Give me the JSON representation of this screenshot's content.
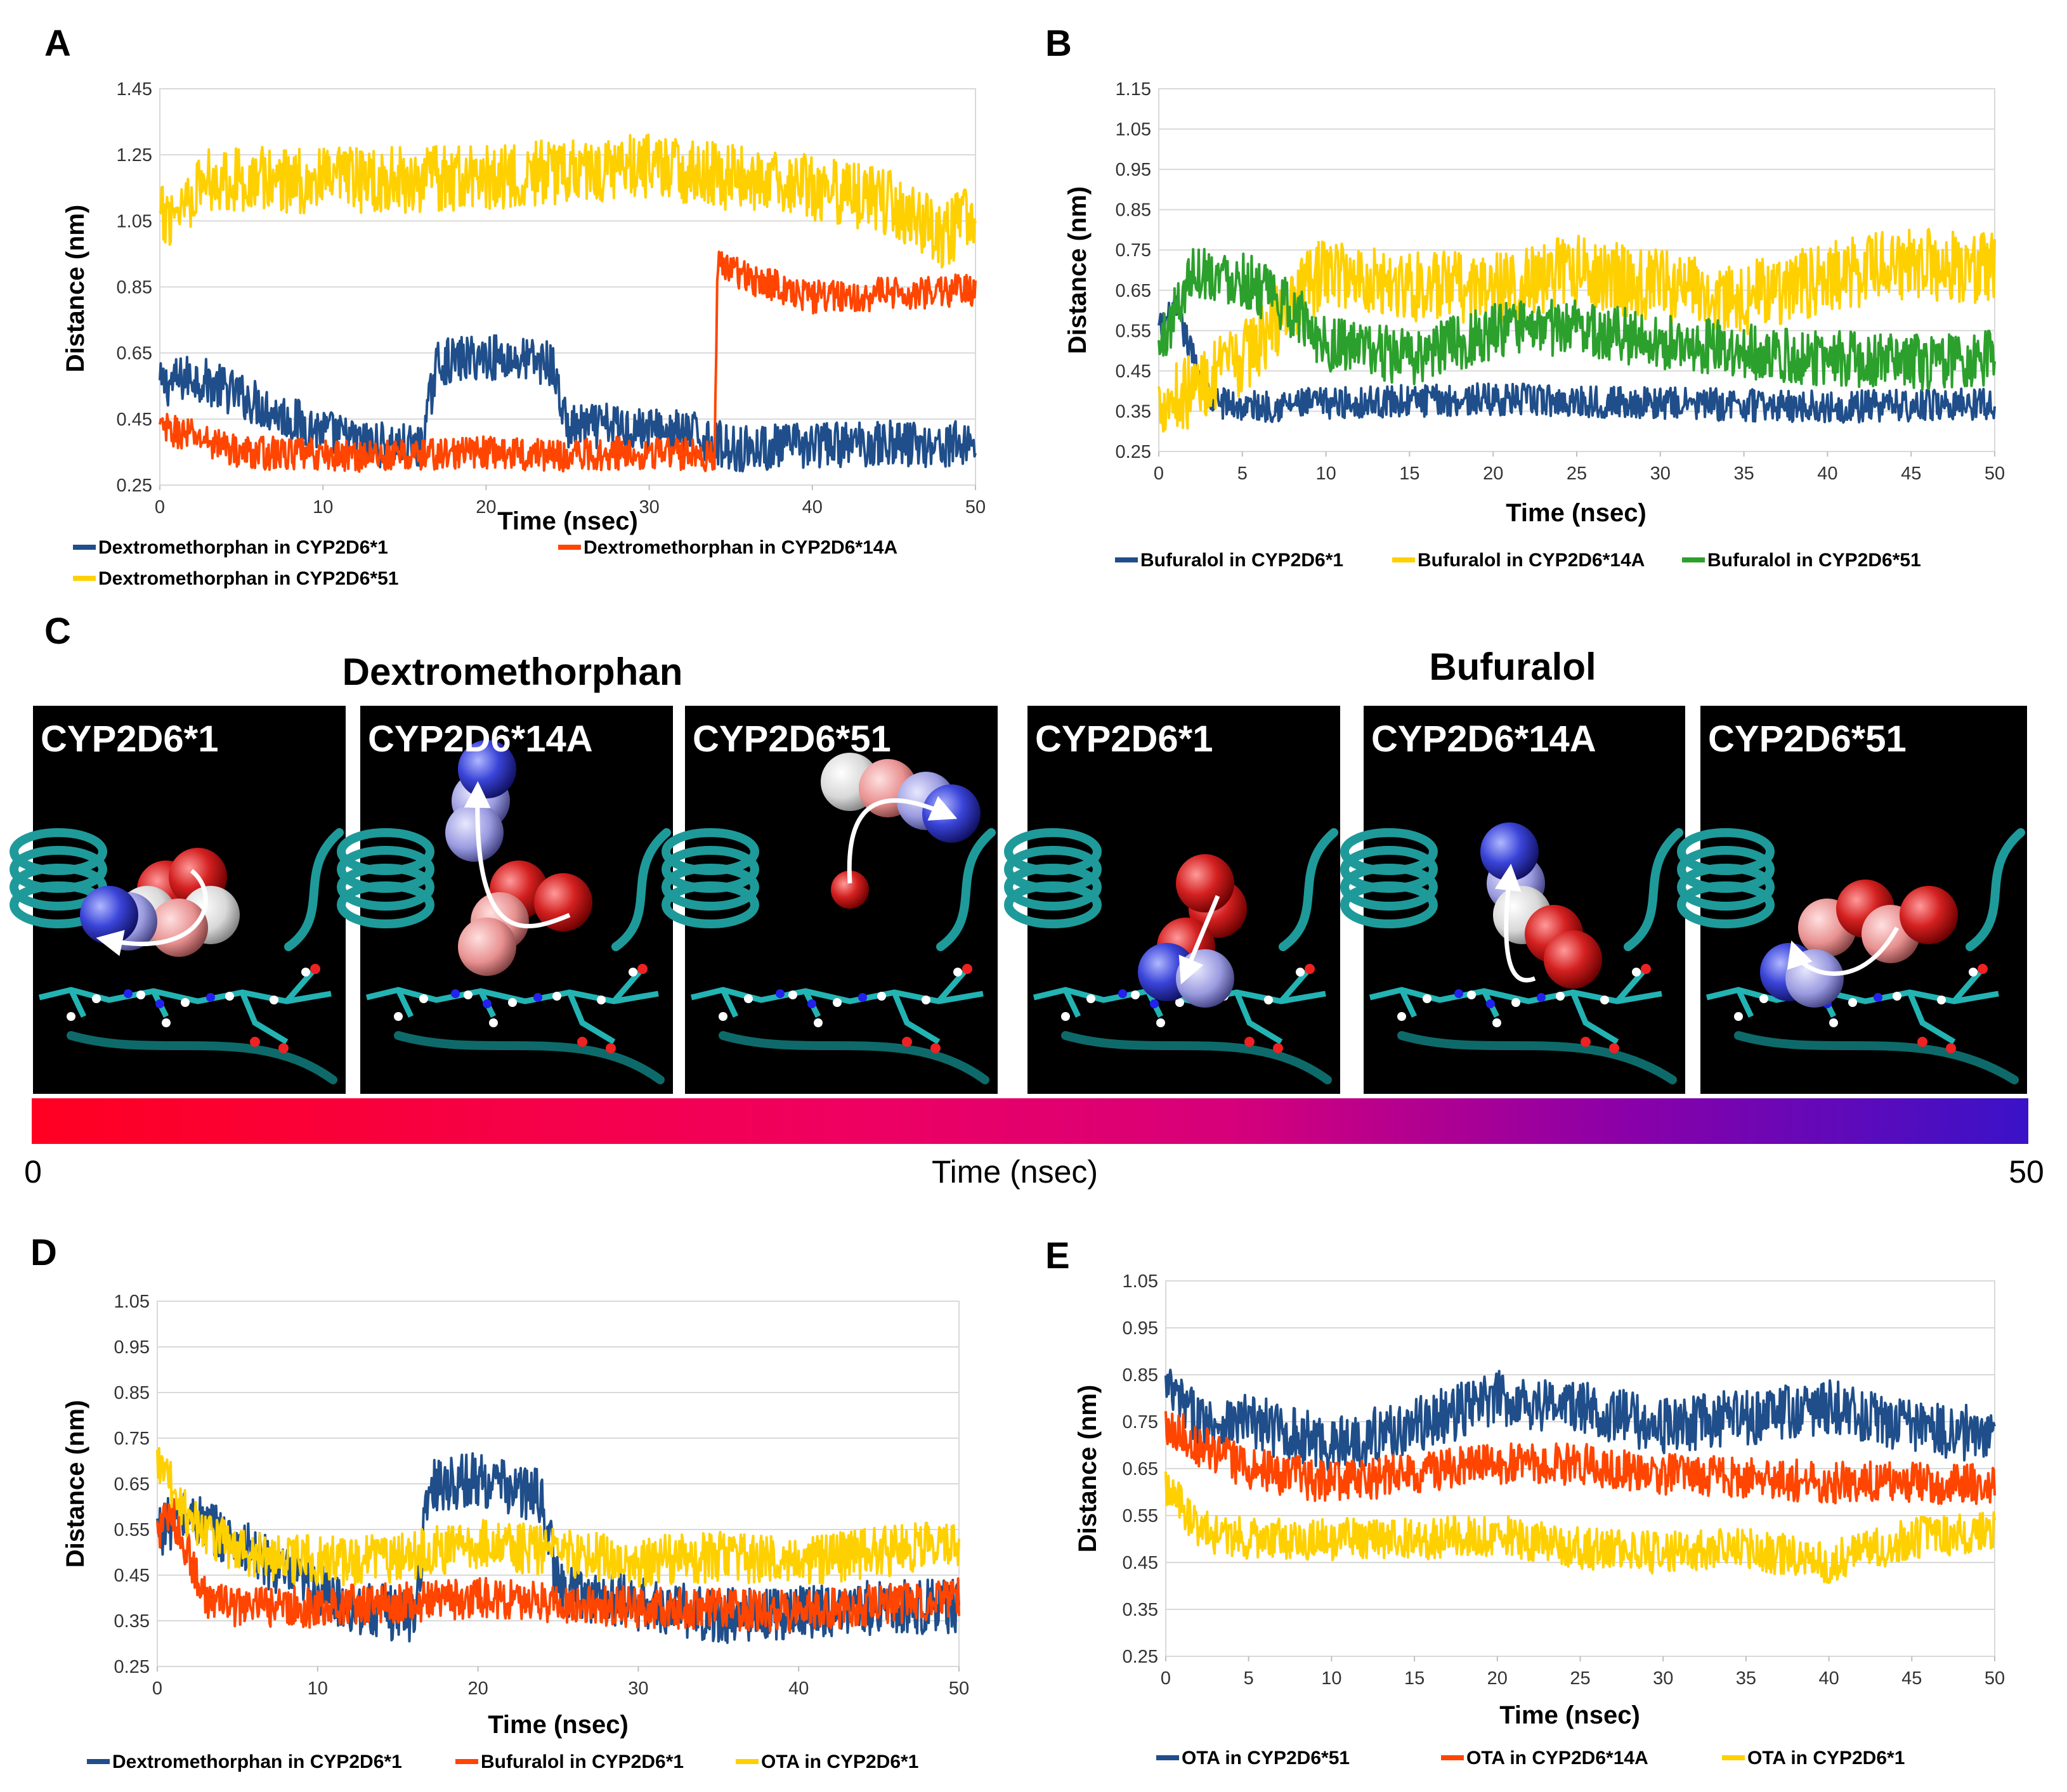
{
  "panels": {
    "A": "A",
    "B": "B",
    "C": "C",
    "D": "D",
    "E": "E"
  },
  "colors": {
    "blue": "#1f4e8a",
    "orange": "#ff4500",
    "yellow": "#ffd000",
    "green": "#2ca02c"
  },
  "chart_data": [
    {
      "id": "A",
      "type": "line",
      "title": "",
      "xlabel": "Time (nsec)",
      "ylabel": "Distance (nm)",
      "xlim": [
        0,
        50
      ],
      "ylim": [
        0.25,
        1.45
      ],
      "xticks": [
        "0",
        "10",
        "20",
        "30",
        "40",
        "50"
      ],
      "yticks": [
        "0.25",
        "0.45",
        "0.65",
        "0.85",
        "1.05",
        "1.25",
        "1.45"
      ],
      "grid": true,
      "legend": "bottom",
      "series": [
        {
          "name": "Dextromethorphan in CYP2D6*1",
          "color": "#1f4e8a",
          "x": [
            0,
            2,
            5,
            8,
            12,
            16,
            17,
            20,
            24,
            25,
            28,
            33,
            35,
            40,
            45,
            48,
            50
          ],
          "y": [
            0.55,
            0.58,
            0.52,
            0.45,
            0.38,
            0.36,
            0.62,
            0.64,
            0.62,
            0.42,
            0.43,
            0.4,
            0.36,
            0.37,
            0.38,
            0.37,
            0.38
          ],
          "noise": 0.07,
          "dense": true
        },
        {
          "name": "Dextromethorphan in CYP2D6*14A",
          "color": "#ff4500",
          "x": [
            0,
            2,
            5,
            10,
            15,
            20,
            25,
            30,
            34,
            34.2,
            36,
            40,
            45,
            50
          ],
          "y": [
            0.42,
            0.4,
            0.35,
            0.34,
            0.34,
            0.35,
            0.34,
            0.35,
            0.34,
            0.92,
            0.88,
            0.82,
            0.83,
            0.84
          ],
          "noise": 0.05,
          "dense": true
        },
        {
          "name": "Dextromethorphan in CYP2D6*51",
          "color": "#ffd000",
          "x": [
            0,
            3,
            10,
            20,
            30,
            35,
            40,
            45,
            48,
            50
          ],
          "y": [
            1.05,
            1.18,
            1.17,
            1.18,
            1.22,
            1.18,
            1.15,
            1.1,
            1.0,
            1.08
          ],
          "noise": 0.1,
          "dense": true
        }
      ]
    },
    {
      "id": "B",
      "type": "line",
      "title": "",
      "xlabel": "Time (nsec)",
      "ylabel": "Distance (nm)",
      "xlim": [
        0,
        50
      ],
      "ylim": [
        0.25,
        1.15
      ],
      "xticks": [
        "0",
        "5",
        "10",
        "15",
        "20",
        "25",
        "30",
        "35",
        "40",
        "45",
        "50"
      ],
      "yticks": [
        "0.25",
        "0.35",
        "0.45",
        "0.55",
        "0.65",
        "0.75",
        "0.85",
        "0.95",
        "1.05",
        "1.15"
      ],
      "grid": true,
      "legend": "bottom",
      "series": [
        {
          "name": "Bufuralol in CYP2D6*1",
          "color": "#1f4e8a",
          "x": [
            0,
            1,
            3,
            5,
            10,
            20,
            30,
            40,
            50
          ],
          "y": [
            0.55,
            0.6,
            0.38,
            0.36,
            0.37,
            0.38,
            0.37,
            0.36,
            0.37
          ],
          "noise": 0.04,
          "dense": true
        },
        {
          "name": "Bufuralol in CYP2D6*14A",
          "color": "#ffd000",
          "x": [
            0,
            2,
            5,
            8,
            10,
            15,
            20,
            25,
            30,
            35,
            40,
            45,
            50
          ],
          "y": [
            0.38,
            0.4,
            0.48,
            0.62,
            0.7,
            0.66,
            0.65,
            0.7,
            0.66,
            0.63,
            0.68,
            0.72,
            0.7
          ],
          "noise": 0.09,
          "dense": true
        },
        {
          "name": "Bufuralol in CYP2D6*51",
          "color": "#2ca02c",
          "x": [
            0,
            2,
            5,
            8,
            10,
            15,
            20,
            25,
            30,
            35,
            40,
            45,
            50
          ],
          "y": [
            0.5,
            0.7,
            0.68,
            0.6,
            0.52,
            0.48,
            0.55,
            0.56,
            0.52,
            0.5,
            0.48,
            0.47,
            0.48
          ],
          "noise": 0.07,
          "dense": true
        }
      ]
    },
    {
      "id": "D",
      "type": "line",
      "title": "",
      "xlabel": "Time (nsec)",
      "ylabel": "Distance (nm)",
      "xlim": [
        0,
        50
      ],
      "ylim": [
        0.25,
        1.05
      ],
      "xticks": [
        "0",
        "10",
        "20",
        "30",
        "40",
        "50"
      ],
      "yticks": [
        "0.25",
        "0.35",
        "0.45",
        "0.55",
        "0.65",
        "0.75",
        "0.85",
        "0.95",
        "1.05"
      ],
      "grid": true,
      "legend": "bottom",
      "series": [
        {
          "name": "Dextromethorphan in CYP2D6*1",
          "color": "#1f4e8a",
          "x": [
            0,
            2,
            5,
            8,
            12,
            16,
            17,
            20,
            24,
            25,
            28,
            33,
            35,
            40,
            45,
            50
          ],
          "y": [
            0.55,
            0.58,
            0.52,
            0.45,
            0.38,
            0.36,
            0.65,
            0.66,
            0.62,
            0.42,
            0.4,
            0.37,
            0.36,
            0.37,
            0.38,
            0.38
          ],
          "noise": 0.06,
          "dense": true
        },
        {
          "name": "Bufuralol in CYP2D6*1",
          "color": "#ff4500",
          "x": [
            0,
            1,
            3,
            5,
            10,
            20,
            30,
            40,
            50
          ],
          "y": [
            0.55,
            0.58,
            0.4,
            0.38,
            0.38,
            0.4,
            0.38,
            0.37,
            0.4
          ],
          "noise": 0.045,
          "dense": true
        },
        {
          "name": "OTA in CYP2D6*1",
          "color": "#ffd000",
          "x": [
            0,
            2,
            5,
            10,
            15,
            20,
            25,
            30,
            35,
            40,
            45,
            50
          ],
          "y": [
            0.7,
            0.58,
            0.5,
            0.48,
            0.49,
            0.52,
            0.5,
            0.48,
            0.49,
            0.48,
            0.5,
            0.52
          ],
          "noise": 0.055,
          "dense": true
        }
      ]
    },
    {
      "id": "E",
      "type": "line",
      "title": "",
      "xlabel": "Time (nsec)",
      "ylabel": "Distance (nm)",
      "xlim": [
        0,
        50
      ],
      "ylim": [
        0.25,
        1.05
      ],
      "xticks": [
        "0",
        "5",
        "10",
        "15",
        "20",
        "25",
        "30",
        "35",
        "40",
        "45",
        "50"
      ],
      "yticks": [
        "0.25",
        "0.35",
        "0.45",
        "0.55",
        "0.65",
        "0.75",
        "0.85",
        "0.95",
        "1.05"
      ],
      "grid": true,
      "legend": "bottom",
      "series": [
        {
          "name": "OTA in CYP2D6*51",
          "color": "#1f4e8a",
          "x": [
            0,
            2,
            5,
            10,
            15,
            20,
            25,
            30,
            35,
            40,
            45,
            50
          ],
          "y": [
            0.82,
            0.75,
            0.75,
            0.7,
            0.74,
            0.8,
            0.78,
            0.74,
            0.76,
            0.78,
            0.74,
            0.72
          ],
          "noise": 0.06,
          "dense": true
        },
        {
          "name": "OTA in CYP2D6*14A",
          "color": "#ff4500",
          "x": [
            0,
            2,
            5,
            10,
            15,
            20,
            25,
            30,
            35,
            40,
            45,
            50
          ],
          "y": [
            0.75,
            0.7,
            0.65,
            0.62,
            0.64,
            0.66,
            0.66,
            0.64,
            0.63,
            0.62,
            0.62,
            0.62
          ],
          "noise": 0.045,
          "dense": true
        },
        {
          "name": "OTA in CYP2D6*1",
          "color": "#ffd000",
          "x": [
            0,
            2,
            5,
            10,
            15,
            20,
            25,
            30,
            35,
            40,
            45,
            50
          ],
          "y": [
            0.62,
            0.52,
            0.5,
            0.5,
            0.5,
            0.51,
            0.48,
            0.47,
            0.48,
            0.45,
            0.5,
            0.52
          ],
          "noise": 0.045,
          "dense": true
        }
      ]
    }
  ],
  "panel_c": {
    "groups": [
      "Dextromethorphan",
      "Bufuralol"
    ],
    "snapshots": [
      "CYP2D6*1",
      "CYP2D6*14A",
      "CYP2D6*51",
      "CYP2D6*1",
      "CYP2D6*14A",
      "CYP2D6*51"
    ],
    "colorbar": {
      "label": "Time (nsec)",
      "min_label": "0",
      "max_label": "50",
      "start_color": "#ff0022",
      "mid_color": "#d6007a",
      "end_color": "#3a12c8"
    }
  }
}
